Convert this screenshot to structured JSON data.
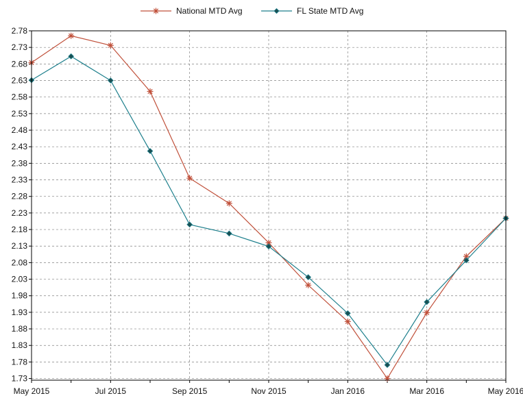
{
  "chart_data": {
    "type": "line",
    "x": [
      "May 2015",
      "Jun 2015",
      "Jul 2015",
      "Aug 2015",
      "Sep 2015",
      "Oct 2015",
      "Nov 2015",
      "Dec 2015",
      "Jan 2016",
      "Feb 2016",
      "Mar 2016",
      "Apr 2016",
      "May 2016"
    ],
    "x_tick_labels": [
      "May 2015",
      "Jul 2015",
      "Sep 2015",
      "Nov 2015",
      "Jan 2016",
      "Mar 2016",
      "May 2016"
    ],
    "y_tick_labels": [
      "2.78",
      "2.73",
      "2.68",
      "2.63",
      "2.58",
      "2.53",
      "2.48",
      "2.43",
      "2.38",
      "2.33",
      "2.28",
      "2.23",
      "2.18",
      "2.13",
      "2.08",
      "2.03",
      "1.98",
      "1.93",
      "1.88",
      "1.83",
      "1.78",
      "1.73"
    ],
    "ylim": [
      1.725,
      2.78
    ],
    "grid": true,
    "legend_position": "top-center",
    "series": [
      {
        "name": "National MTD Avg",
        "color": "#c0503a",
        "marker": "asterisk",
        "values": [
          2.684,
          2.765,
          2.736,
          2.597,
          2.335,
          2.259,
          2.14,
          2.012,
          1.902,
          1.73,
          1.929,
          2.099,
          2.214
        ]
      },
      {
        "name": "FL State MTD Avg",
        "color": "#1d7f8c",
        "marker": "diamond",
        "values": [
          2.631,
          2.703,
          2.63,
          2.417,
          2.195,
          2.168,
          2.129,
          2.036,
          1.927,
          1.771,
          1.961,
          2.087,
          2.214
        ]
      }
    ]
  }
}
